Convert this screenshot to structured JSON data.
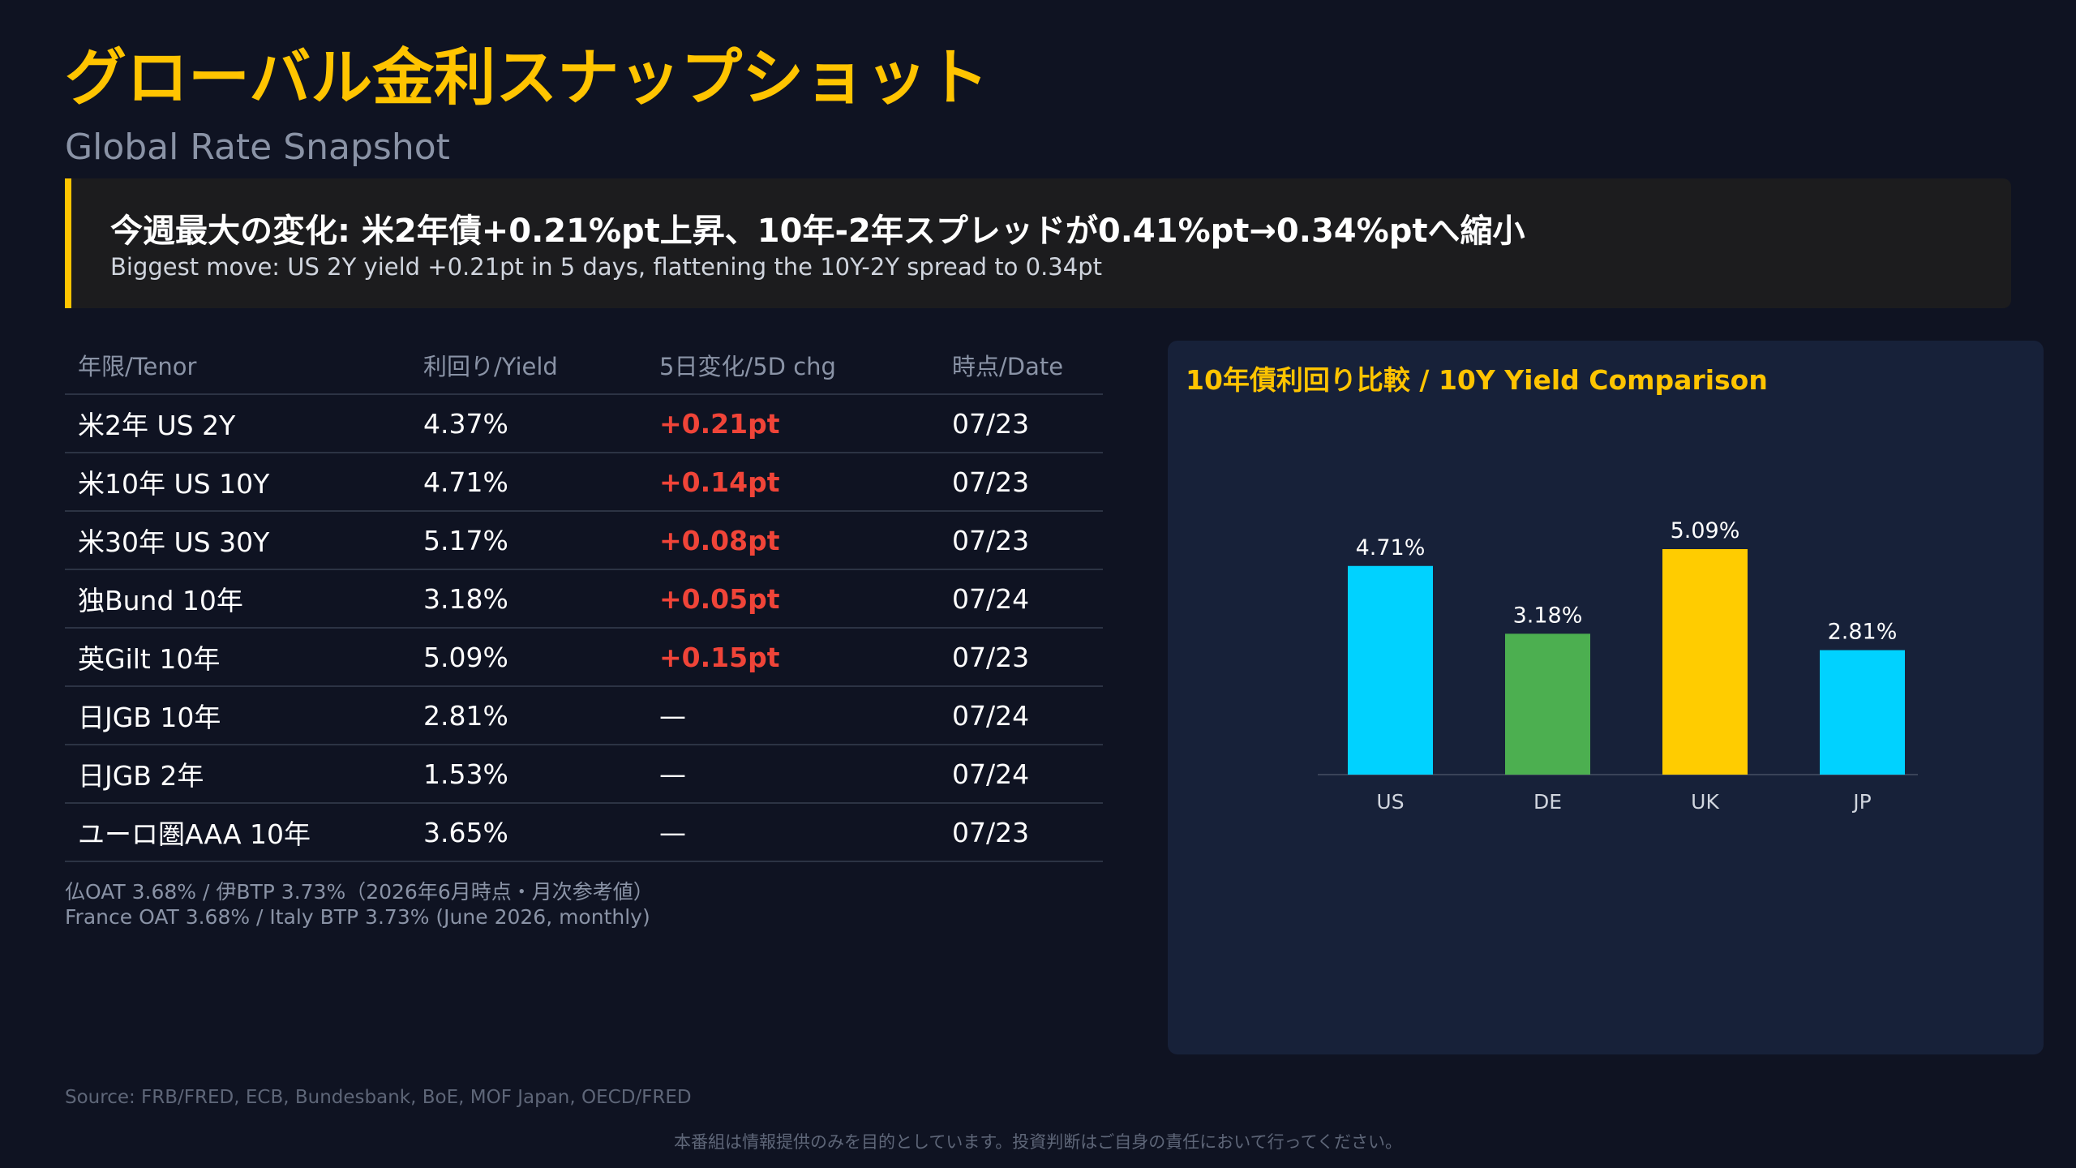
{
  "header": {
    "title": "グローバル金利スナップショット",
    "subtitle": "Global Rate Snapshot"
  },
  "callout": {
    "main": "今週最大の変化: 米2年債+0.21%pt上昇、10年-2年スプレッドが0.41%pt→0.34%ptへ縮小",
    "sub": "Biggest move: US 2Y yield +0.21pt in 5 days, flattening the 10Y-2Y spread to 0.34pt",
    "accent_color": "#ffc400"
  },
  "table": {
    "headers": [
      "年限/Tenor",
      "利回り/Yield",
      "5日変化/5D chg",
      "時点/Date"
    ],
    "rows": [
      {
        "tenor": "米2年 US 2Y",
        "yield": "4.37%",
        "change": "+0.21pt",
        "date": "07/23",
        "up": true
      },
      {
        "tenor": "米10年 US 10Y",
        "yield": "4.71%",
        "change": "+0.14pt",
        "date": "07/23",
        "up": true
      },
      {
        "tenor": "米30年 US 30Y",
        "yield": "5.17%",
        "change": "+0.08pt",
        "date": "07/23",
        "up": true
      },
      {
        "tenor": "独Bund 10年",
        "yield": "3.18%",
        "change": "+0.05pt",
        "date": "07/24",
        "up": true
      },
      {
        "tenor": "英Gilt 10年",
        "yield": "5.09%",
        "change": "+0.15pt",
        "date": "07/23",
        "up": true
      },
      {
        "tenor": "日JGB 10年",
        "yield": "2.81%",
        "change": "—",
        "date": "07/24",
        "up": false
      },
      {
        "tenor": "日JGB 2年",
        "yield": "1.53%",
        "change": "—",
        "date": "07/24",
        "up": false
      },
      {
        "tenor": "ユーロ圏AAA 10年",
        "yield": "3.65%",
        "change": "—",
        "date": "07/23",
        "up": false
      }
    ],
    "up_color": "#f04438"
  },
  "notes": {
    "line1": "仏OAT 3.68% / 伊BTP 3.73%（2026年6月時点・月次参考値）",
    "line2": "France OAT 3.68% / Italy BTP 3.73% (June 2026, monthly)"
  },
  "chart_data": {
    "type": "bar",
    "title": "10年債利回り比較 / 10Y Yield Comparison",
    "categories": [
      "US",
      "DE",
      "UK",
      "JP"
    ],
    "values": [
      4.71,
      3.18,
      5.09,
      2.81
    ],
    "value_labels": [
      "4.71%",
      "3.18%",
      "5.09%",
      "2.81%"
    ],
    "colors": [
      "#00d2ff",
      "#4caf50",
      "#ffcc00",
      "#00d2ff"
    ],
    "ylim": [
      0,
      6.5
    ],
    "grid": false,
    "xlabel": "",
    "ylabel": ""
  },
  "footer": {
    "source": "Source: FRB/FRED, ECB, Bundesbank, BoE, MOF Japan, OECD/FRED",
    "disclaimer": "本番組は情報提供のみを目的としています。投資判断はご自身の責任において行ってください。"
  }
}
